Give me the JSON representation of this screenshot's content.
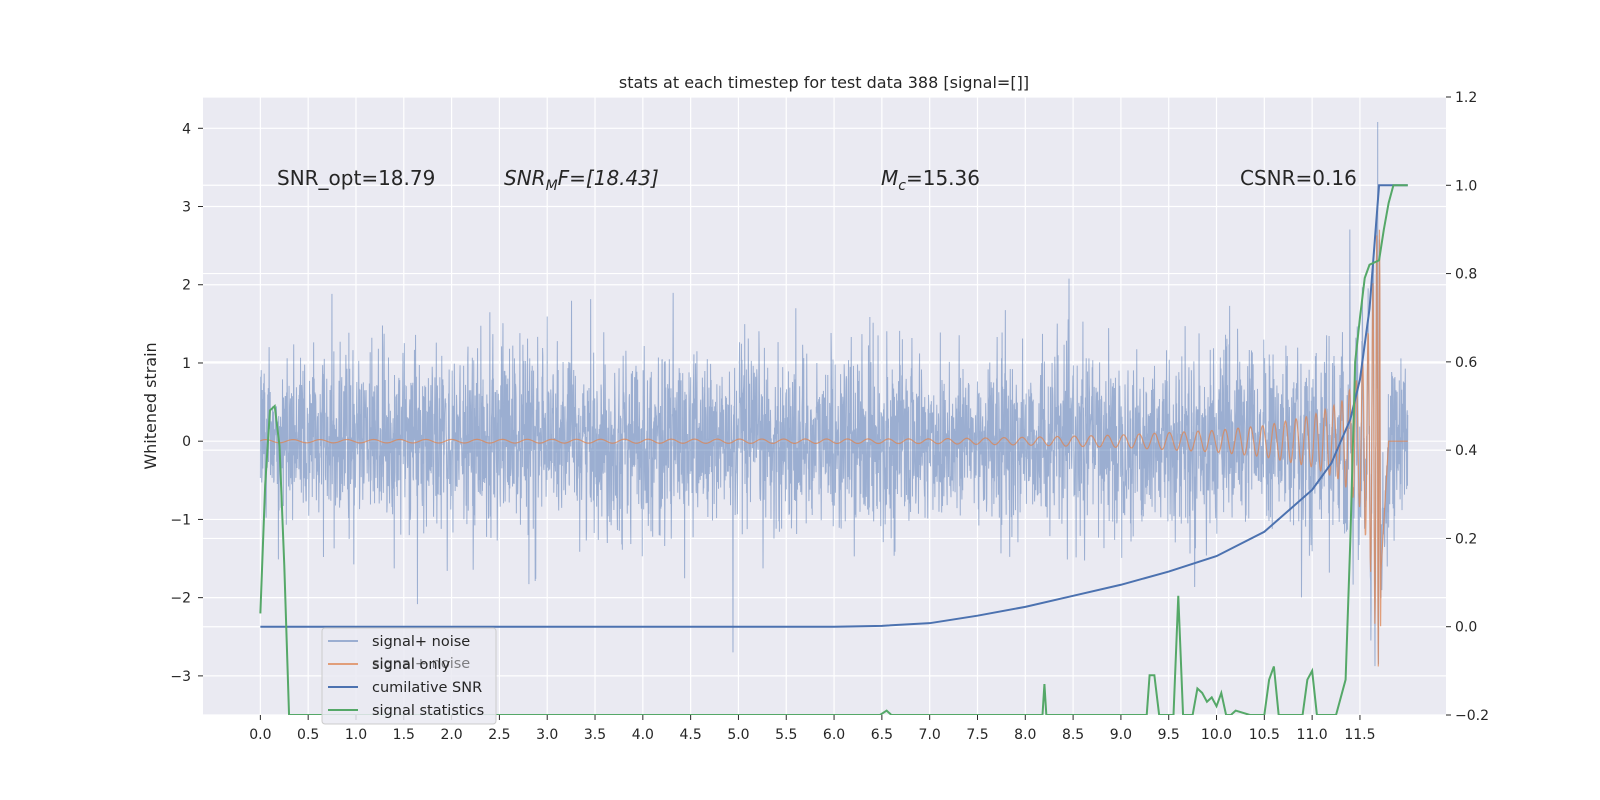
{
  "chart_data": {
    "type": "line",
    "title": "stats at each timestep for test data 388 [signal=[]]",
    "xlabel": "",
    "ylabel": "Whitened strain",
    "y2label": "",
    "xlim": [
      -0.6,
      12.4
    ],
    "ylim": [
      -3.5,
      4.4
    ],
    "y2lim": [
      -0.2,
      1.2
    ],
    "grid": true,
    "legend_position": "lower-left",
    "x_ticks": [
      "0.0",
      "0.5",
      "1.0",
      "1.5",
      "2.0",
      "2.5",
      "3.0",
      "3.5",
      "4.0",
      "4.5",
      "5.0",
      "5.5",
      "6.0",
      "6.5",
      "7.0",
      "7.5",
      "8.0",
      "8.5",
      "9.0",
      "9.5",
      "10.0",
      "10.5",
      "11.0",
      "11.5"
    ],
    "y_ticks": [
      "−3",
      "−2",
      "−1",
      "0",
      "1",
      "2",
      "3",
      "4"
    ],
    "y2_ticks": [
      "−0.2",
      "0.0",
      "0.2",
      "0.4",
      "0.6",
      "0.8",
      "1.0",
      "1.2"
    ],
    "annotations": [
      {
        "text": "SNR_opt=18.79",
        "x": 0.2,
        "y": 3.3
      },
      {
        "text": "SNR_M F=[18.43]",
        "x": 2.6,
        "y": 3.3
      },
      {
        "text": "M_c=15.36",
        "x": 6.6,
        "y": 3.3
      },
      {
        "text": "CSNR=0.16",
        "x": 10.4,
        "y": 3.3
      }
    ],
    "annotation_parts": {
      "snr_opt": "SNR_opt=18.79",
      "snrmf_main": "SNR",
      "snrmf_sub": "M",
      "snrmf_rest": "F=[18.43]",
      "mc_main": "M",
      "mc_sub": "c",
      "mc_rest": "=15.36",
      "csnr": "CSNR=0.16"
    },
    "series": [
      {
        "name": "signal+ noise",
        "axis": "left",
        "color": "#4c72b0",
        "description_values": {
          "x_range": [
            0.0,
            12.0
          ],
          "typical_envelope": [
            -1.3,
            1.3
          ],
          "peak_max": 4.08,
          "peak_min": -2.7
        }
      },
      {
        "name": "signal only",
        "axis": "left",
        "color": "#dd8452",
        "envelope": {
          "x": [
            0.0,
            7.0,
            8.0,
            9.0,
            10.0,
            10.5,
            11.0,
            11.3,
            11.5,
            11.6,
            11.7,
            11.8,
            12.0
          ],
          "amp": [
            0.02,
            0.03,
            0.05,
            0.08,
            0.14,
            0.2,
            0.33,
            0.5,
            0.85,
            1.5,
            3.0,
            0.0,
            0.0
          ]
        }
      },
      {
        "name": "cumilative SNR",
        "axis": "right",
        "color": "#4c72b0",
        "x": [
          0.0,
          6.0,
          6.5,
          7.0,
          7.5,
          8.0,
          8.5,
          9.0,
          9.5,
          10.0,
          10.5,
          11.0,
          11.2,
          11.4,
          11.5,
          11.6,
          11.65,
          11.7,
          12.0
        ],
        "y": [
          0.0,
          0.0,
          0.002,
          0.008,
          0.025,
          0.045,
          0.07,
          0.095,
          0.125,
          0.16,
          0.215,
          0.31,
          0.37,
          0.47,
          0.56,
          0.72,
          0.86,
          1.0,
          1.0
        ]
      },
      {
        "name": "signal statistics",
        "axis": "right",
        "color": "#55a868",
        "x": [
          0.0,
          0.05,
          0.1,
          0.15,
          0.2,
          0.25,
          0.3,
          0.35,
          0.4,
          6.48,
          6.55,
          6.6,
          8.18,
          8.2,
          8.22,
          9.27,
          9.3,
          9.35,
          9.4,
          9.55,
          9.6,
          9.65,
          9.75,
          9.8,
          9.85,
          9.9,
          9.95,
          10.0,
          10.05,
          10.1,
          10.15,
          10.2,
          10.35,
          10.4,
          10.5,
          10.55,
          10.6,
          10.65,
          10.7,
          10.75,
          10.8,
          10.9,
          10.95,
          11.0,
          11.05,
          11.1,
          11.15,
          11.2,
          11.25,
          11.35,
          11.4,
          11.45,
          11.5,
          11.55,
          11.6,
          11.7,
          11.75,
          11.8,
          11.85,
          11.9,
          11.95,
          12.0
        ],
        "y": [
          0.03,
          0.32,
          0.49,
          0.5,
          0.41,
          0.14,
          -0.2,
          -0.2,
          -0.2,
          -0.2,
          -0.19,
          -0.2,
          -0.2,
          -0.13,
          -0.2,
          -0.2,
          -0.11,
          -0.11,
          -0.2,
          -0.2,
          0.07,
          -0.2,
          -0.2,
          -0.14,
          -0.15,
          -0.17,
          -0.16,
          -0.18,
          -0.15,
          -0.2,
          -0.2,
          -0.19,
          -0.2,
          -0.2,
          -0.2,
          -0.12,
          -0.09,
          -0.2,
          -0.2,
          -0.2,
          -0.2,
          -0.2,
          -0.12,
          -0.1,
          -0.2,
          -0.2,
          -0.2,
          -0.2,
          -0.2,
          -0.12,
          0.2,
          0.6,
          0.7,
          0.79,
          0.82,
          0.83,
          0.9,
          0.96,
          1.0,
          1.0,
          1.0,
          1.0
        ]
      }
    ]
  },
  "legend_ghost": "signal+ noise"
}
